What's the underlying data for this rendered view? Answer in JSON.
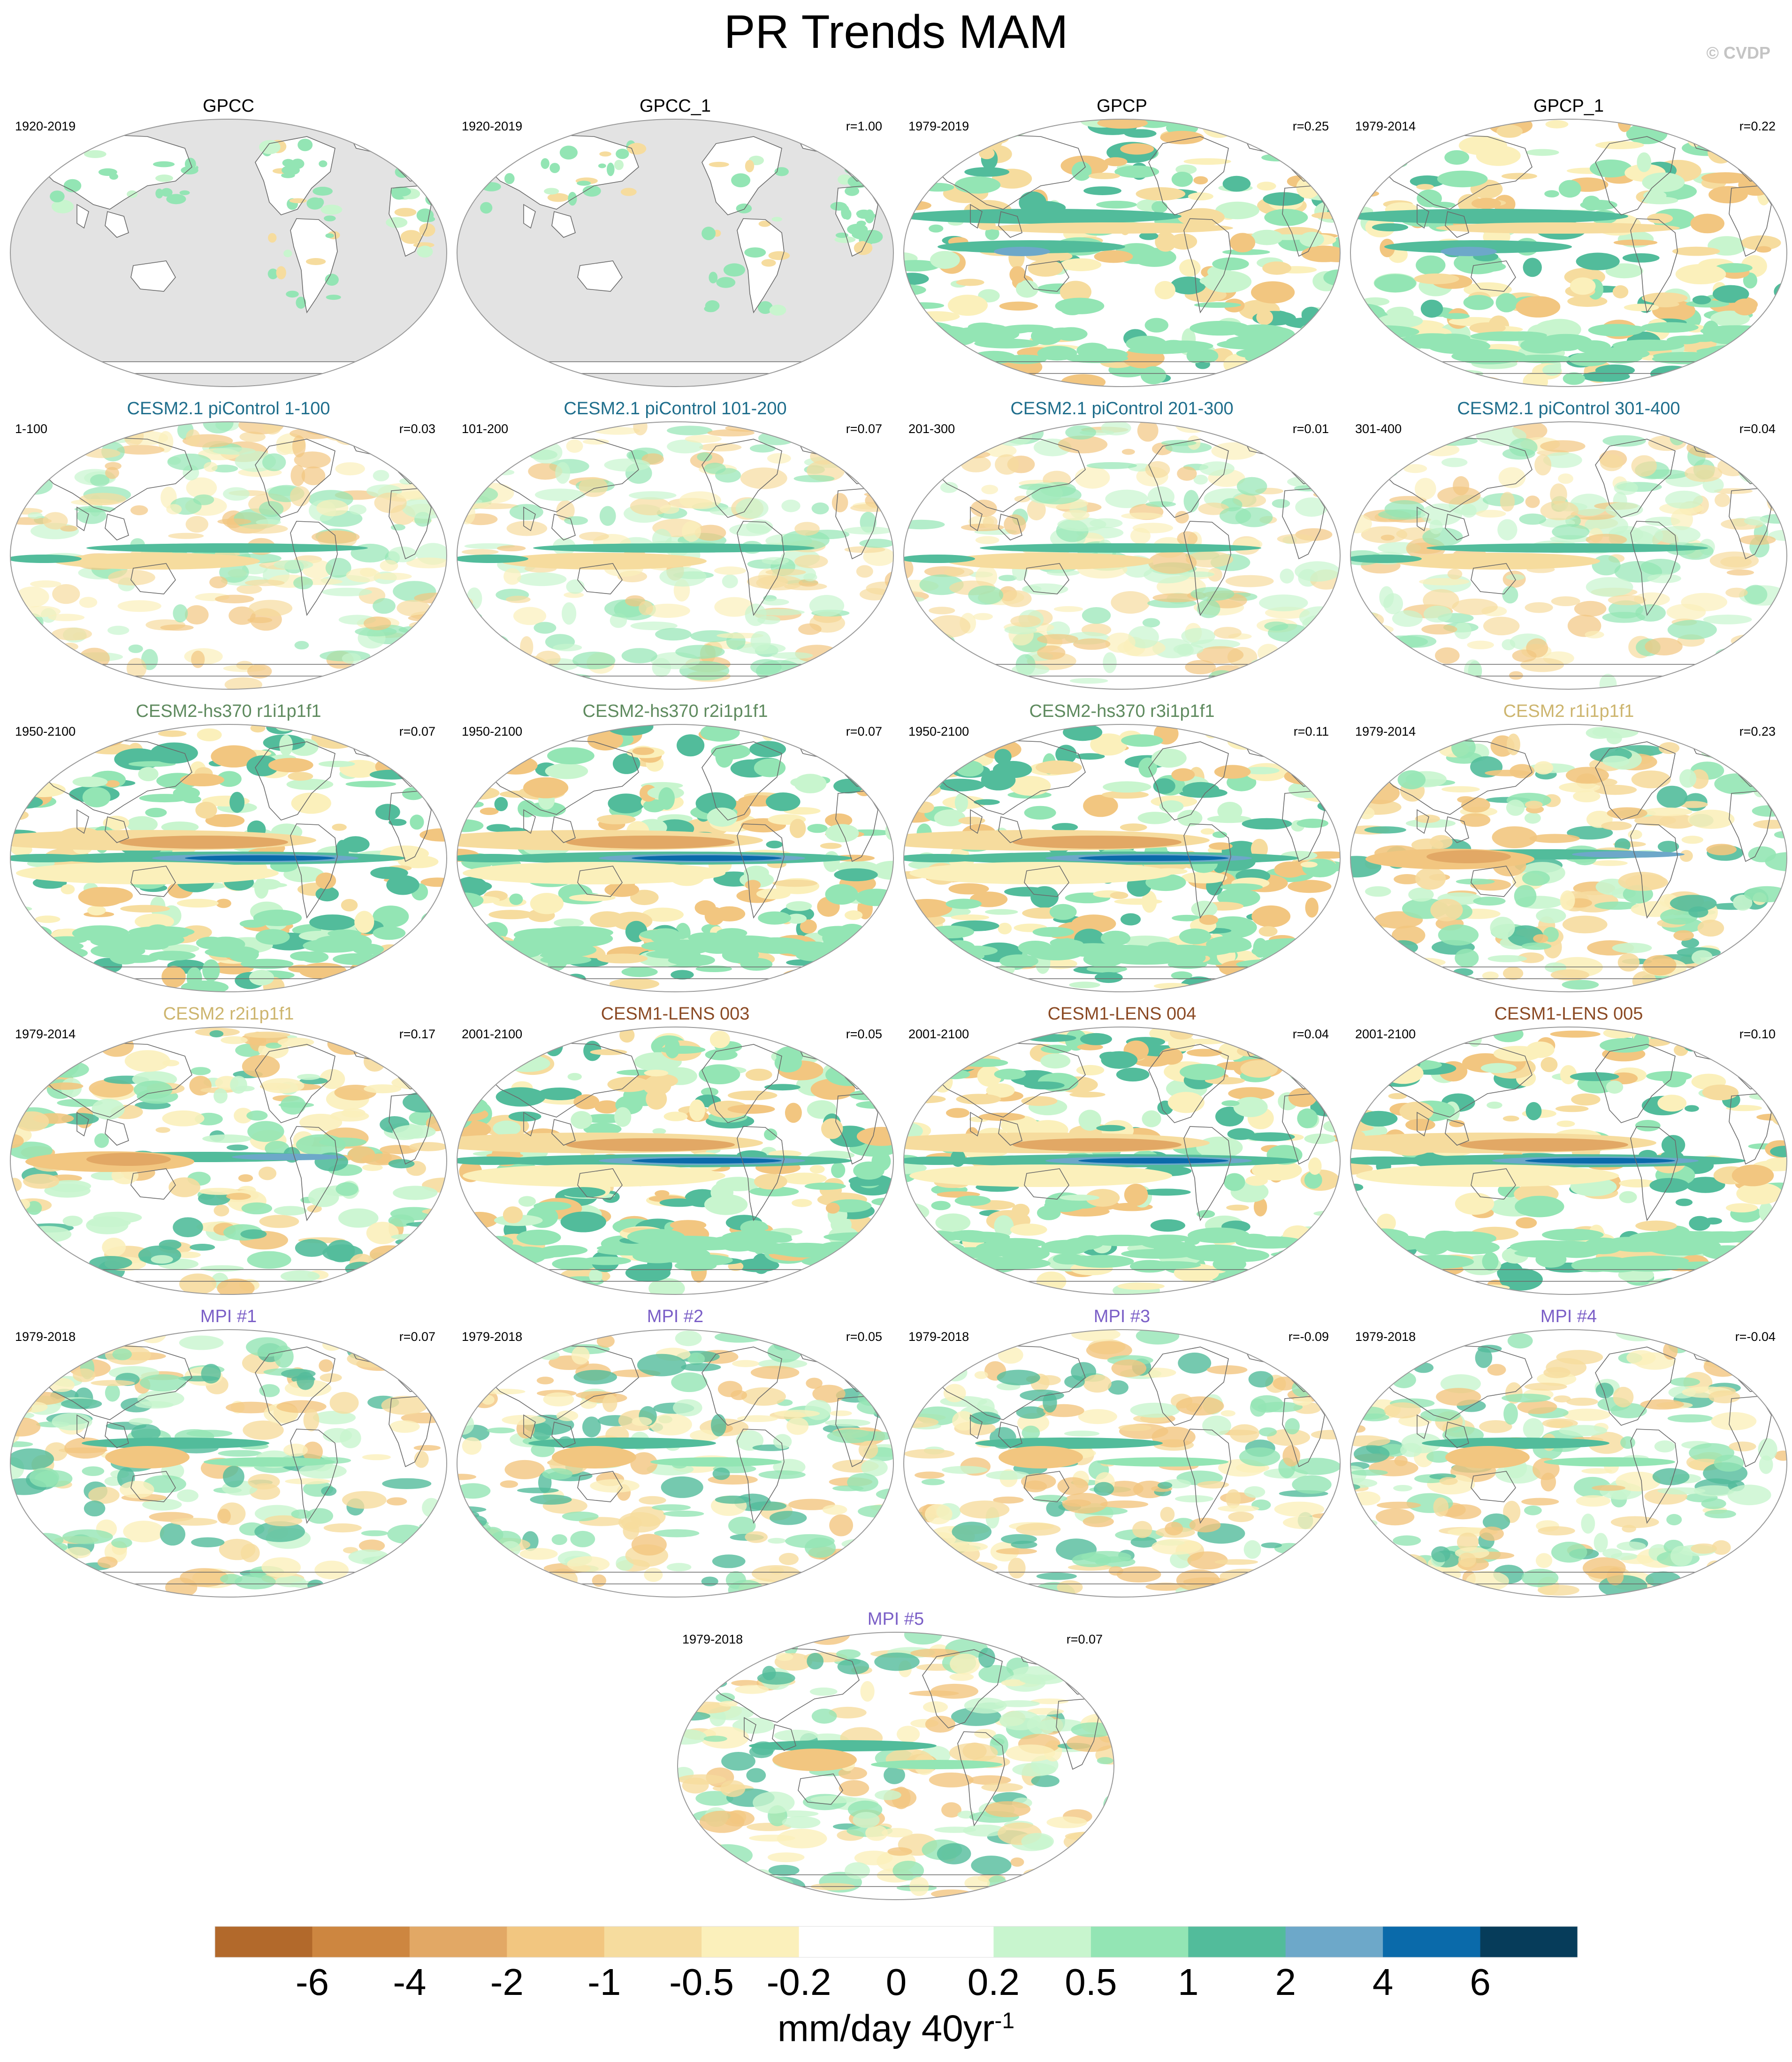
{
  "figure": {
    "title": "PR Trends MAM",
    "copyright": "© CVDP",
    "units": "mm/day 40yr",
    "units_exponent": "-1"
  },
  "colors": {
    "land_mask": "#e3e3e3",
    "outline": "#9a9a9a",
    "coast": "#6a6a6a"
  },
  "colorbar": {
    "tick_labels": [
      "-6",
      "-4",
      "-2",
      "-1",
      "-0.5",
      "-0.2",
      "0",
      "0.2",
      "0.5",
      "1",
      "2",
      "4",
      "6"
    ],
    "colors": [
      "#b2692b",
      "#cd8640",
      "#e2a865",
      "#f2c680",
      "#f6dc9e",
      "#fbf0bb",
      "#ffffff",
      "#ffffff",
      "#c8f5ce",
      "#93e5b4",
      "#52bc9b",
      "#6da8c9",
      "#0a6aaa",
      "#063c5a"
    ]
  },
  "chart_data": [
    {
      "type": "heatmap",
      "title": "GPCC",
      "period": "1920-2019",
      "r": "",
      "title_color": "#000000",
      "pattern": "land"
    },
    {
      "type": "heatmap",
      "title": "GPCC_1",
      "period": "1920-2019",
      "r": "r=1.00",
      "title_color": "#000000",
      "pattern": "land"
    },
    {
      "type": "heatmap",
      "title": "GPCP",
      "period": "1979-2019",
      "r": "r=0.25",
      "title_color": "#000000",
      "pattern": "obs"
    },
    {
      "type": "heatmap",
      "title": "GPCP_1",
      "period": "1979-2014",
      "r": "r=0.22",
      "title_color": "#000000",
      "pattern": "obs"
    },
    {
      "type": "heatmap",
      "title": "CESM2.1 piControl 1-100",
      "period": "1-100",
      "r": "r=0.03",
      "title_color": "#1f6e8c",
      "pattern": "pi"
    },
    {
      "type": "heatmap",
      "title": "CESM2.1 piControl 101-200",
      "period": "101-200",
      "r": "r=0.07",
      "title_color": "#1f6e8c",
      "pattern": "pi"
    },
    {
      "type": "heatmap",
      "title": "CESM2.1 piControl 201-300",
      "period": "201-300",
      "r": "r=0.01",
      "title_color": "#1f6e8c",
      "pattern": "pi"
    },
    {
      "type": "heatmap",
      "title": "CESM2.1 piControl 301-400",
      "period": "301-400",
      "r": "r=0.04",
      "title_color": "#1f6e8c",
      "pattern": "pi"
    },
    {
      "type": "heatmap",
      "title": "CESM2-hs370 r1i1p1f1",
      "period": "1950-2100",
      "r": "r=0.07",
      "title_color": "#5e8a5e",
      "pattern": "strong"
    },
    {
      "type": "heatmap",
      "title": "CESM2-hs370 r2i1p1f1",
      "period": "1950-2100",
      "r": "r=0.07",
      "title_color": "#5e8a5e",
      "pattern": "strong"
    },
    {
      "type": "heatmap",
      "title": "CESM2-hs370 r3i1p1f1",
      "period": "1950-2100",
      "r": "r=0.11",
      "title_color": "#5e8a5e",
      "pattern": "strong"
    },
    {
      "type": "heatmap",
      "title": "CESM2 r1i1p1f1",
      "period": "1979-2014",
      "r": "r=0.23",
      "title_color": "#cdb56e",
      "pattern": "mixed"
    },
    {
      "type": "heatmap",
      "title": "CESM2 r2i1p1f1",
      "period": "1979-2014",
      "r": "r=0.17",
      "title_color": "#cdb56e",
      "pattern": "mixed"
    },
    {
      "type": "heatmap",
      "title": "CESM1-LENS 003",
      "period": "2001-2100",
      "r": "r=0.05",
      "title_color": "#8b4a24",
      "pattern": "strong"
    },
    {
      "type": "heatmap",
      "title": "CESM1-LENS 004",
      "period": "2001-2100",
      "r": "r=0.04",
      "title_color": "#8b4a24",
      "pattern": "strong"
    },
    {
      "type": "heatmap",
      "title": "CESM1-LENS 005",
      "period": "2001-2100",
      "r": "r=0.10",
      "title_color": "#8b4a24",
      "pattern": "strong"
    },
    {
      "type": "heatmap",
      "title": "MPI #1",
      "period": "1979-2018",
      "r": "r=0.07",
      "title_color": "#7b5fc7",
      "pattern": "mpi"
    },
    {
      "type": "heatmap",
      "title": "MPI #2",
      "period": "1979-2018",
      "r": "r=0.05",
      "title_color": "#7b5fc7",
      "pattern": "mpi"
    },
    {
      "type": "heatmap",
      "title": "MPI #3",
      "period": "1979-2018",
      "r": "r=-0.09",
      "title_color": "#7b5fc7",
      "pattern": "mpi"
    },
    {
      "type": "heatmap",
      "title": "MPI #4",
      "period": "1979-2018",
      "r": "r=-0.04",
      "title_color": "#7b5fc7",
      "pattern": "mpi"
    },
    {
      "type": "heatmap",
      "title": "MPI #5",
      "period": "1979-2018",
      "r": "r=0.07",
      "title_color": "#7b5fc7",
      "pattern": "mpi"
    }
  ]
}
